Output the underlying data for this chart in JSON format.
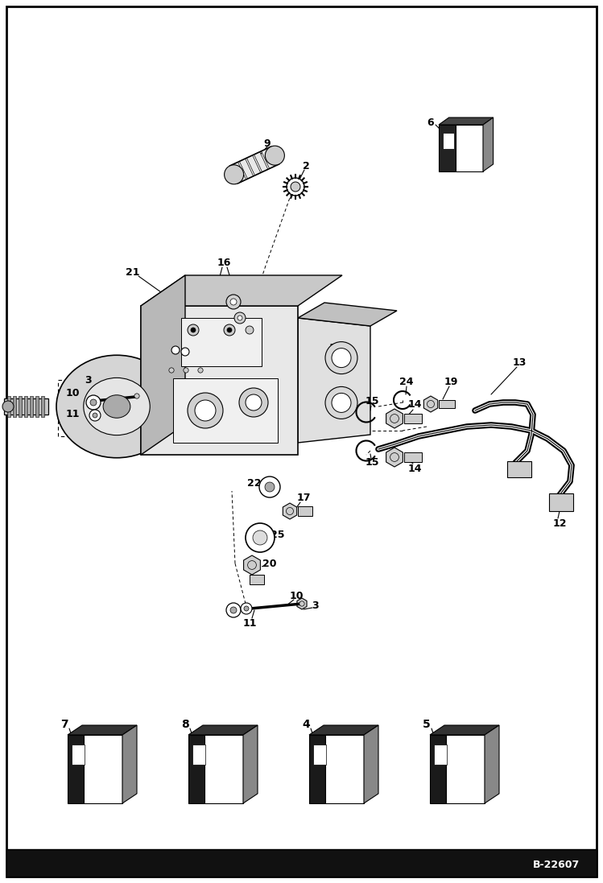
{
  "bg_color": "#ffffff",
  "figure_width": 7.49,
  "figure_height": 10.97,
  "dpi": 100,
  "bottom_label": "B-22607",
  "gray_light": "#d8d8d8",
  "gray_mid": "#aaaaaa",
  "gray_dark": "#666666",
  "black": "#000000",
  "white": "#ffffff"
}
